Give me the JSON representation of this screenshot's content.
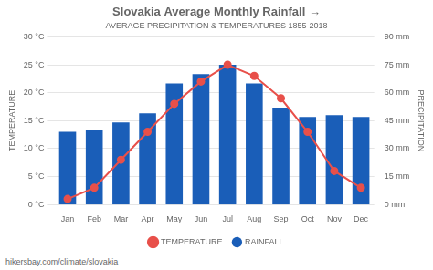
{
  "chart_data": {
    "type": "bar",
    "title": "Slovakia Average Monthly Rainfall →",
    "subtitle": "AVERAGE PRECIPITATION & TEMPERATURES 1855-2018",
    "categories": [
      "Jan",
      "Feb",
      "Mar",
      "Apr",
      "May",
      "Jun",
      "Jul",
      "Aug",
      "Sep",
      "Oct",
      "Nov",
      "Dec"
    ],
    "series": [
      {
        "name": "TEMPERATURE",
        "type": "line",
        "color": "#e8504a",
        "marker": "circle",
        "values": [
          1,
          3,
          8,
          13,
          18,
          22,
          25,
          23,
          19,
          13,
          6,
          3
        ]
      },
      {
        "name": "RAINFALL",
        "type": "bar",
        "color": "#1a5eb8",
        "axis": "y2",
        "values": [
          39,
          40,
          44,
          49,
          65,
          70,
          75,
          65,
          52,
          47,
          48,
          47
        ]
      }
    ],
    "ylabel": "TEMPERATURE",
    "y2label": "PRECIPITATION",
    "ylim": [
      0,
      30
    ],
    "yticks": [
      {
        "value": 0,
        "label": "0 °C"
      },
      {
        "value": 5,
        "label": "5 °C"
      },
      {
        "value": 10,
        "label": "10 °C"
      },
      {
        "value": 15,
        "label": "15 °C"
      },
      {
        "value": 20,
        "label": "20 °C"
      },
      {
        "value": 25,
        "label": "25 °C"
      },
      {
        "value": 30,
        "label": "30 °C"
      }
    ],
    "y2lim": [
      0,
      90
    ],
    "y2ticks": [
      {
        "value": 0,
        "label": "0 mm"
      },
      {
        "value": 15,
        "label": "15 mm"
      },
      {
        "value": 30,
        "label": "30 mm"
      },
      {
        "value": 45,
        "label": "45 mm"
      },
      {
        "value": 60,
        "label": "60 mm"
      },
      {
        "value": 75,
        "label": "75 mm"
      },
      {
        "value": 90,
        "label": "90 mm"
      }
    ],
    "grid": true,
    "legend": "bottom",
    "annotations": [
      "hikersbay.com/climate/slovakia"
    ]
  }
}
